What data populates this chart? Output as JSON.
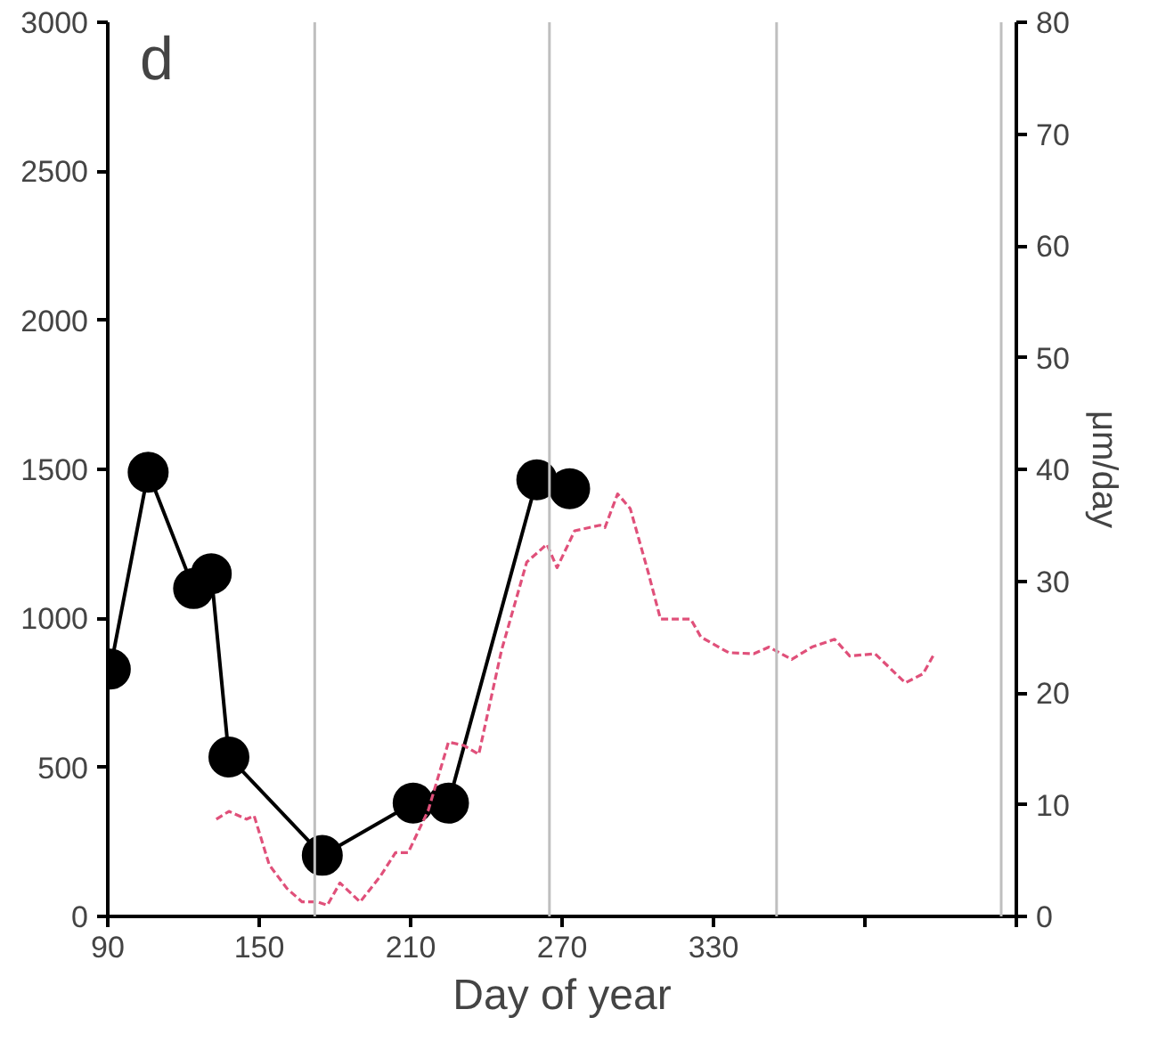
{
  "chart_data": {
    "type": "line",
    "xlabel": "Day of year",
    "y2label": "μm/day",
    "annotations": [
      "d"
    ],
    "xlim": [
      90,
      450
    ],
    "xticks": [
      90,
      150,
      210,
      270,
      330,
      {
        "value": 390,
        "label": null
      },
      {
        "value": 450,
        "label": null
      }
    ],
    "ylim": [
      0,
      3000
    ],
    "yticks": [
      0,
      500,
      1000,
      1500,
      2000,
      2500,
      3000
    ],
    "y2lim": [
      0,
      80
    ],
    "y2ticks": [
      0,
      10,
      20,
      30,
      40,
      50,
      60,
      70,
      80
    ],
    "grid": false,
    "ref_lines": [
      {
        "axis": "x",
        "value": 172,
        "color": "#bfbfbf"
      },
      {
        "axis": "x",
        "value": 265,
        "color": "#bfbfbf"
      },
      {
        "axis": "x",
        "value": 355,
        "color": "#bfbfbf"
      },
      {
        "axis": "x",
        "value": 444,
        "color": "#bfbfbf"
      }
    ],
    "series": [
      {
        "color": "#000000",
        "marker": "circle",
        "line_style": "solid",
        "x": [
          91,
          106,
          124,
          131,
          138,
          175,
          211,
          225,
          260,
          273
        ],
        "values": [
          830,
          1490,
          1100,
          1150,
          535,
          205,
          380,
          380,
          1465,
          1435
        ]
      },
      {
        "color": "#e0507a",
        "marker": "none",
        "line_style": "dashed",
        "axis": "y2",
        "x": [
          133,
          138,
          145,
          148,
          154,
          161,
          167,
          173,
          177,
          182,
          190,
          198,
          204,
          209,
          217,
          225,
          231,
          237,
          246,
          256,
          264,
          268,
          275,
          285,
          287,
          292,
          297,
          304,
          309,
          321,
          325,
          336,
          346,
          352,
          361,
          369,
          378,
          384,
          394,
          406,
          413,
          417
        ],
        "values": [
          8.7,
          9.4,
          8.7,
          9.0,
          4.6,
          2.5,
          1.3,
          1.3,
          1.0,
          3.0,
          1.3,
          3.6,
          5.7,
          5.7,
          9.5,
          15.6,
          15.3,
          14.5,
          23.8,
          31.7,
          33.3,
          31.2,
          34.5,
          35.0,
          34.8,
          37.8,
          36.5,
          30.9,
          26.6,
          26.6,
          25.0,
          23.6,
          23.5,
          24.1,
          23.0,
          24.1,
          24.8,
          23.3,
          23.5,
          20.9,
          21.7,
          23.3
        ]
      }
    ]
  }
}
